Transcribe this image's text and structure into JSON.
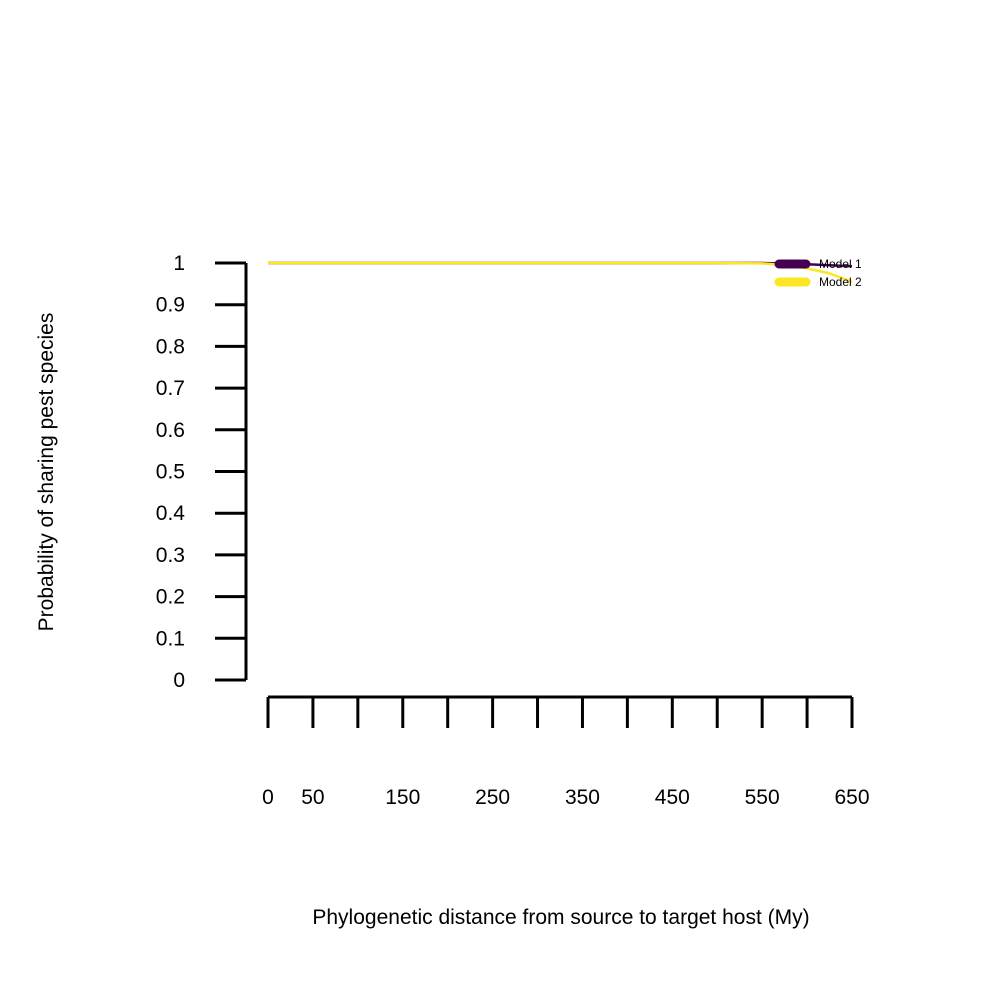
{
  "chart_data": {
    "type": "line",
    "title": "",
    "xlabel": "Phylogenetic distance from source to target host (My)",
    "ylabel": "Probability of sharing pest species",
    "xlim": [
      0,
      650
    ],
    "ylim": [
      0,
      1
    ],
    "x_ticks": [
      0,
      50,
      100,
      150,
      200,
      250,
      300,
      350,
      400,
      450,
      500,
      550,
      600,
      650
    ],
    "x_tick_labels": [
      "0",
      "50",
      "150",
      "250",
      "350",
      "450",
      "550",
      "650"
    ],
    "x_tick_label_values": [
      0,
      50,
      150,
      250,
      350,
      450,
      550,
      650
    ],
    "y_ticks": [
      0,
      0.1,
      0.2,
      0.3,
      0.4,
      0.5,
      0.6,
      0.7,
      0.8,
      0.9,
      1
    ],
    "y_tick_labels": [
      "0",
      "0.1",
      "0.2",
      "0.3",
      "0.4",
      "0.5",
      "0.6",
      "0.7",
      "0.8",
      "0.9",
      "1"
    ],
    "grid": false,
    "legend_position": "top-right",
    "series": [
      {
        "name": "Model 1",
        "color": "#440154",
        "x": [
          0,
          100,
          200,
          300,
          400,
          500,
          550,
          600,
          650
        ],
        "y": [
          1,
          1,
          1,
          1,
          1,
          1,
          1,
          0.997,
          0.992
        ]
      },
      {
        "name": "Model 2",
        "color": "#FDE725",
        "x": [
          0,
          100,
          200,
          300,
          400,
          500,
          550,
          575,
          600,
          625,
          650
        ],
        "y": [
          1,
          1,
          1,
          1,
          1,
          1,
          0.999,
          0.995,
          0.987,
          0.975,
          0.955
        ]
      }
    ]
  }
}
